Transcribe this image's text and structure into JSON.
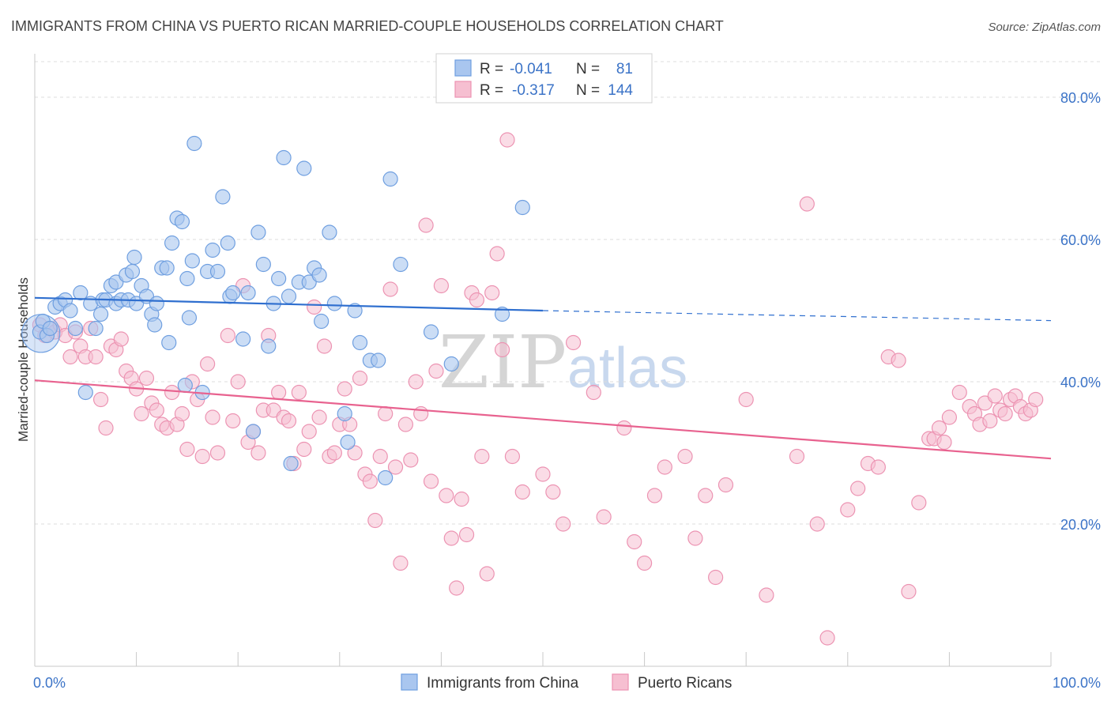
{
  "title": "IMMIGRANTS FROM CHINA VS PUERTO RICAN MARRIED-COUPLE HOUSEHOLDS CORRELATION CHART",
  "source": "Source: ZipAtlas.com",
  "watermark": {
    "zip": "ZIP",
    "atlas": "atlas"
  },
  "colors": {
    "blue_fill": "#a9c6ef",
    "blue_stroke": "#6f9fe0",
    "blue_line": "#2f6fcf",
    "pink_fill": "#f6bfd1",
    "pink_stroke": "#ec93b2",
    "pink_line": "#e8628f",
    "grid": "#dcdcdc",
    "tick_label": "#3b73c7"
  },
  "legend": {
    "row1": {
      "r_label": "R = ",
      "r_value": "-0.041",
      "n_label": "N = ",
      "n_value": "81"
    },
    "row2": {
      "r_label": "R = ",
      "r_value": "-0.317",
      "n_label": "N = ",
      "n_value": "144"
    }
  },
  "chart_data": {
    "type": "scatter",
    "title": "IMMIGRANTS FROM CHINA VS PUERTO RICAN MARRIED-COUPLE HOUSEHOLDS CORRELATION CHART",
    "xlabel": "",
    "ylabel": "Married-couple Households",
    "xlim": [
      0,
      100
    ],
    "ylim": [
      0,
      85
    ],
    "x_tick_labels": [
      "0.0%",
      "100.0%"
    ],
    "y_ticks": [
      20,
      40,
      60,
      80
    ],
    "y_tick_labels": [
      "20.0%",
      "40.0%",
      "60.0%",
      "80.0%"
    ],
    "grid": true,
    "legend_position": "top-center",
    "series": [
      {
        "name": "Immigrants from China",
        "r": -0.041,
        "n": 81,
        "trend": {
          "x0": 0,
          "y0": 51.8,
          "x1": 50,
          "y1": 50.0,
          "dashed_to": 100,
          "dashed_y": 48.6
        },
        "points": [
          [
            0.5,
            47
          ],
          [
            0.8,
            48.5
          ],
          [
            1.2,
            46.5
          ],
          [
            1.5,
            47.5
          ],
          [
            2,
            50.5
          ],
          [
            2.5,
            51
          ],
          [
            3,
            51.5
          ],
          [
            3.5,
            50
          ],
          [
            4,
            47.5
          ],
          [
            4.5,
            52.5
          ],
          [
            5,
            38.5
          ],
          [
            5.5,
            51
          ],
          [
            6,
            47.5
          ],
          [
            6.5,
            49.5
          ],
          [
            6.7,
            51.5
          ],
          [
            7,
            51.5
          ],
          [
            7.5,
            53.5
          ],
          [
            8,
            51
          ],
          [
            8,
            54
          ],
          [
            8.5,
            51.5
          ],
          [
            9,
            55
          ],
          [
            9.2,
            51.5
          ],
          [
            9.6,
            55.5
          ],
          [
            9.8,
            57.5
          ],
          [
            10,
            51
          ],
          [
            10.5,
            53.5
          ],
          [
            11,
            52
          ],
          [
            11.5,
            49.5
          ],
          [
            11.8,
            48
          ],
          [
            12,
            51
          ],
          [
            12.5,
            56
          ],
          [
            13,
            56
          ],
          [
            13.2,
            45.5
          ],
          [
            13.5,
            59.5
          ],
          [
            14,
            63
          ],
          [
            14.5,
            62.5
          ],
          [
            14.8,
            39.5
          ],
          [
            15,
            54.5
          ],
          [
            15.2,
            49
          ],
          [
            15.5,
            57
          ],
          [
            15.7,
            73.5
          ],
          [
            16.5,
            38.5
          ],
          [
            17,
            55.5
          ],
          [
            17.5,
            58.5
          ],
          [
            18,
            55.5
          ],
          [
            18.5,
            66
          ],
          [
            19,
            59.5
          ],
          [
            19.2,
            52
          ],
          [
            19.5,
            52.5
          ],
          [
            20.5,
            46
          ],
          [
            21,
            52.5
          ],
          [
            21.5,
            33
          ],
          [
            22,
            61
          ],
          [
            22.5,
            56.5
          ],
          [
            23,
            45
          ],
          [
            23.5,
            51
          ],
          [
            24,
            54.5
          ],
          [
            24.5,
            71.5
          ],
          [
            25,
            52
          ],
          [
            25.2,
            28.5
          ],
          [
            26,
            54
          ],
          [
            26.5,
            70
          ],
          [
            27,
            54
          ],
          [
            27.5,
            56
          ],
          [
            28,
            55
          ],
          [
            28.2,
            48.5
          ],
          [
            29,
            61
          ],
          [
            29.5,
            51
          ],
          [
            30.5,
            35.5
          ],
          [
            30.8,
            31.5
          ],
          [
            31.5,
            50
          ],
          [
            32,
            45.5
          ],
          [
            33,
            43
          ],
          [
            33.8,
            43
          ],
          [
            34.5,
            26.5
          ],
          [
            35,
            68.5
          ],
          [
            36,
            56.5
          ],
          [
            39,
            47
          ],
          [
            41,
            42.5
          ],
          [
            46,
            49.5
          ],
          [
            48,
            64.5
          ]
        ]
      },
      {
        "name": "Puerto Ricans",
        "r": -0.317,
        "n": 144,
        "trend": {
          "x0": 0,
          "y0": 40.2,
          "x1": 100,
          "y1": 29.2
        },
        "points": [
          [
            0.5,
            48
          ],
          [
            1,
            46.5
          ],
          [
            1.5,
            47.5
          ],
          [
            2,
            47
          ],
          [
            2.5,
            48
          ],
          [
            3,
            46.5
          ],
          [
            3.5,
            43.5
          ],
          [
            4,
            47
          ],
          [
            4.5,
            45
          ],
          [
            5,
            43.5
          ],
          [
            5.5,
            47.5
          ],
          [
            6,
            43.5
          ],
          [
            6.5,
            37.5
          ],
          [
            7,
            33.5
          ],
          [
            7.5,
            45
          ],
          [
            8,
            44.5
          ],
          [
            8.5,
            46
          ],
          [
            9,
            41.5
          ],
          [
            9.5,
            40.5
          ],
          [
            10,
            39
          ],
          [
            10.5,
            35.5
          ],
          [
            11,
            40.5
          ],
          [
            11.5,
            37
          ],
          [
            12,
            36
          ],
          [
            12.5,
            34
          ],
          [
            13,
            33.5
          ],
          [
            13.5,
            38.5
          ],
          [
            14,
            34
          ],
          [
            14.5,
            35.5
          ],
          [
            15,
            30.5
          ],
          [
            15.5,
            40
          ],
          [
            16,
            37.5
          ],
          [
            16.5,
            29.5
          ],
          [
            17,
            42.5
          ],
          [
            17.5,
            35
          ],
          [
            18,
            30
          ],
          [
            19,
            46.5
          ],
          [
            19.5,
            34.5
          ],
          [
            20,
            40
          ],
          [
            20.5,
            53.5
          ],
          [
            21,
            31.5
          ],
          [
            21.5,
            33
          ],
          [
            22,
            30
          ],
          [
            22.5,
            36
          ],
          [
            23,
            46.5
          ],
          [
            23.5,
            36
          ],
          [
            24,
            38.5
          ],
          [
            24.5,
            35
          ],
          [
            25,
            34.5
          ],
          [
            25.5,
            28.5
          ],
          [
            26,
            38.5
          ],
          [
            26.5,
            30.5
          ],
          [
            27,
            33
          ],
          [
            27.5,
            50.5
          ],
          [
            28,
            35
          ],
          [
            28.5,
            45
          ],
          [
            29,
            29.5
          ],
          [
            29.5,
            30
          ],
          [
            30,
            34
          ],
          [
            30.5,
            39
          ],
          [
            31,
            34
          ],
          [
            31.5,
            30
          ],
          [
            32,
            40.5
          ],
          [
            32.5,
            27
          ],
          [
            33,
            26
          ],
          [
            33.5,
            20.5
          ],
          [
            34,
            29.5
          ],
          [
            34.5,
            35.5
          ],
          [
            35,
            53
          ],
          [
            35.5,
            28
          ],
          [
            36,
            14.5
          ],
          [
            36.5,
            34
          ],
          [
            37,
            29
          ],
          [
            37.5,
            40
          ],
          [
            38,
            35.5
          ],
          [
            38.5,
            62
          ],
          [
            39,
            26
          ],
          [
            39.5,
            41.5
          ],
          [
            40,
            53.5
          ],
          [
            40.5,
            24
          ],
          [
            41,
            18
          ],
          [
            41.5,
            11
          ],
          [
            42,
            23.5
          ],
          [
            42.5,
            18.5
          ],
          [
            43,
            52.5
          ],
          [
            43.5,
            51.5
          ],
          [
            44,
            29.5
          ],
          [
            44.5,
            13
          ],
          [
            45,
            52.5
          ],
          [
            45.5,
            58
          ],
          [
            46,
            44.5
          ],
          [
            46.5,
            74
          ],
          [
            47,
            29.5
          ],
          [
            48,
            24.5
          ],
          [
            50,
            27
          ],
          [
            51,
            24.5
          ],
          [
            52,
            20
          ],
          [
            53,
            45.5
          ],
          [
            55,
            38.5
          ],
          [
            56,
            21
          ],
          [
            58,
            33.5
          ],
          [
            59,
            17.5
          ],
          [
            60,
            14.5
          ],
          [
            61,
            24
          ],
          [
            62,
            28
          ],
          [
            64,
            29.5
          ],
          [
            65,
            18
          ],
          [
            66,
            24
          ],
          [
            67,
            12.5
          ],
          [
            68,
            25.5
          ],
          [
            70,
            37.5
          ],
          [
            72,
            10
          ],
          [
            75,
            29.5
          ],
          [
            76,
            65
          ],
          [
            77,
            20
          ],
          [
            78,
            4
          ],
          [
            80,
            22
          ],
          [
            81,
            25
          ],
          [
            82,
            28.5
          ],
          [
            83,
            28
          ],
          [
            84,
            43.5
          ],
          [
            85,
            43
          ],
          [
            86,
            10.5
          ],
          [
            87,
            23
          ],
          [
            88,
            32
          ],
          [
            88.5,
            32
          ],
          [
            89,
            33.5
          ],
          [
            89.5,
            31.5
          ],
          [
            90,
            35
          ],
          [
            91,
            38.5
          ],
          [
            92,
            36.5
          ],
          [
            92.5,
            35.5
          ],
          [
            93,
            34
          ],
          [
            93.5,
            37
          ],
          [
            94,
            34.5
          ],
          [
            94.5,
            38
          ],
          [
            95,
            36
          ],
          [
            95.5,
            35.5
          ],
          [
            96,
            37.5
          ],
          [
            96.5,
            38
          ],
          [
            97,
            36.5
          ],
          [
            97.5,
            35.5
          ],
          [
            98,
            36
          ],
          [
            98.5,
            37.5
          ]
        ]
      }
    ]
  },
  "bottom_legend": {
    "series1": "Immigrants from China",
    "series2": "Puerto Ricans"
  }
}
